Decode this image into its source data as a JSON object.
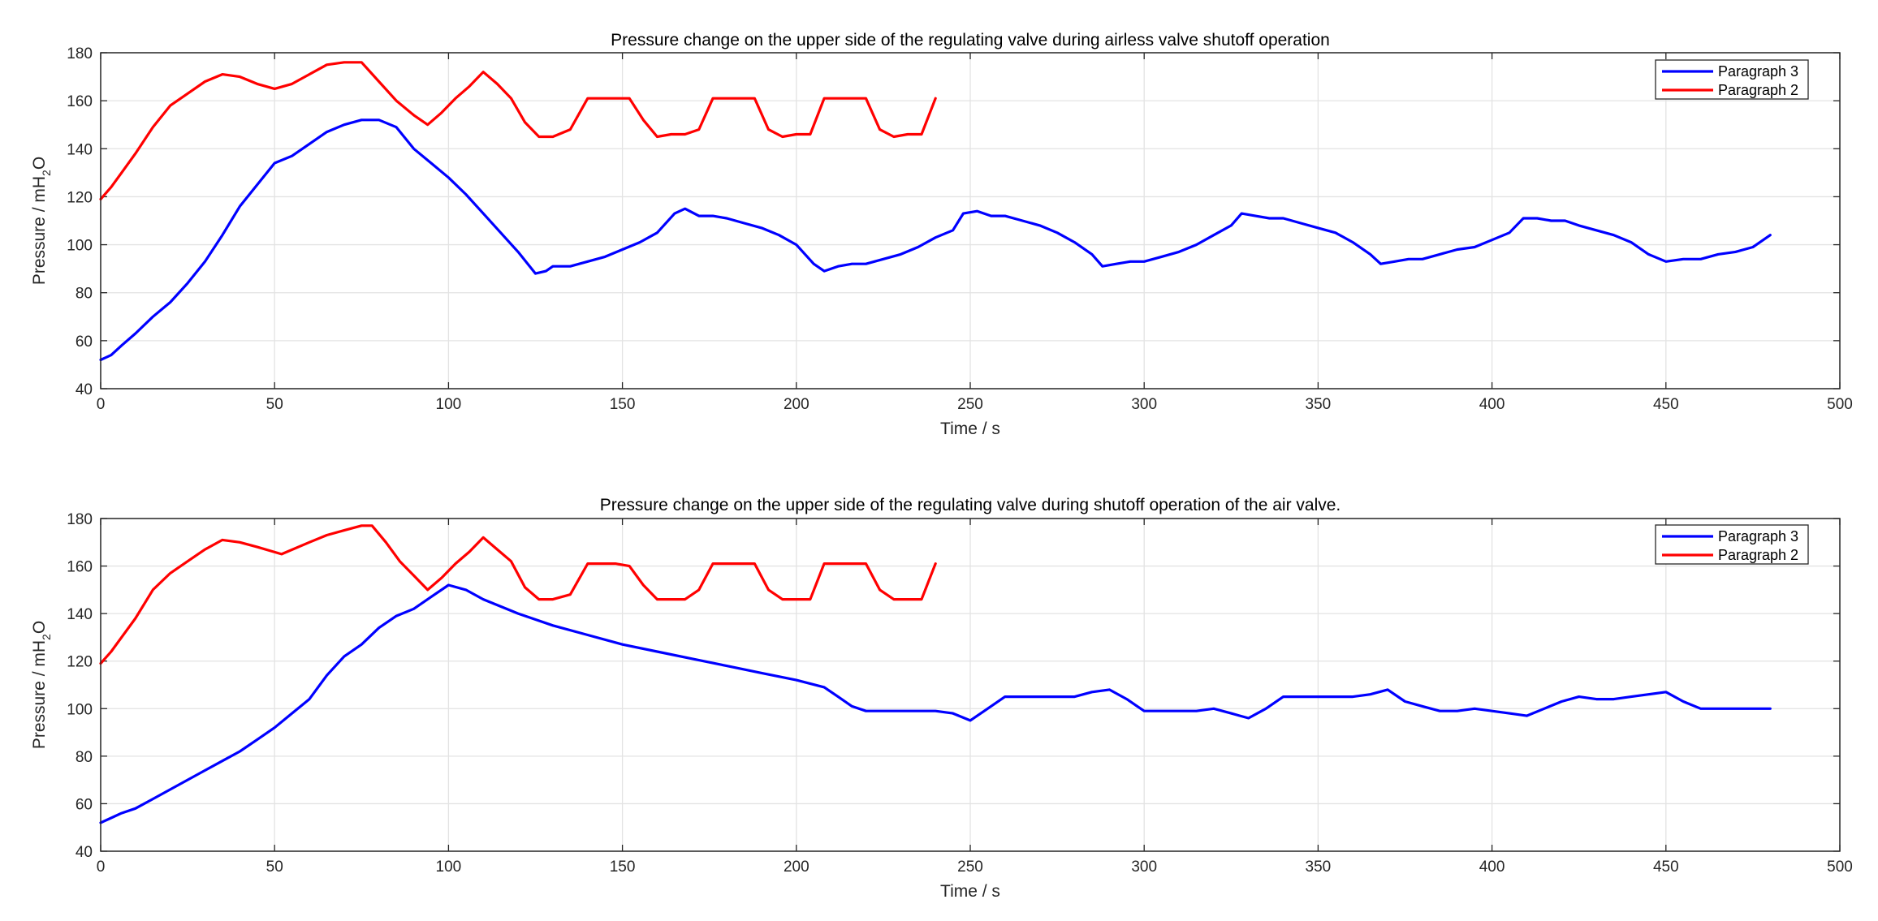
{
  "chart_data": [
    {
      "type": "line",
      "title": "Pressure change on the upper side of the regulating valve during airless valve shutoff operation",
      "xlabel": "Time / s",
      "ylabel_main": "Pressure  / mH",
      "ylabel_sub": "2",
      "ylabel_end": "O",
      "xlim": [
        0,
        500
      ],
      "ylim": [
        40,
        180
      ],
      "xticks": [
        0,
        50,
        100,
        150,
        200,
        250,
        300,
        350,
        400,
        450,
        500
      ],
      "yticks": [
        40,
        60,
        80,
        100,
        120,
        140,
        160,
        180
      ],
      "grid": true,
      "legend_position": "top-right",
      "series": [
        {
          "name": "Paragraph 3",
          "color": "#0000ff",
          "x": [
            0,
            3,
            6,
            10,
            15,
            20,
            25,
            30,
            35,
            40,
            45,
            50,
            55,
            60,
            65,
            70,
            75,
            80,
            85,
            90,
            95,
            100,
            105,
            110,
            115,
            120,
            125,
            128,
            130,
            135,
            140,
            145,
            150,
            155,
            160,
            165,
            168,
            172,
            176,
            180,
            185,
            190,
            195,
            200,
            205,
            208,
            212,
            216,
            220,
            225,
            230,
            235,
            240,
            245,
            248,
            252,
            256,
            260,
            265,
            270,
            275,
            280,
            285,
            288,
            292,
            296,
            300,
            305,
            310,
            315,
            320,
            325,
            328,
            332,
            336,
            340,
            345,
            350,
            355,
            360,
            365,
            368,
            372,
            376,
            380,
            385,
            390,
            395,
            400,
            405,
            409,
            413,
            417,
            421,
            425,
            430,
            435,
            440,
            445,
            450,
            455,
            460,
            465,
            470,
            475,
            480
          ],
          "values": [
            52,
            54,
            58,
            63,
            70,
            76,
            84,
            93,
            104,
            116,
            125,
            134,
            137,
            142,
            147,
            150,
            152,
            152,
            149,
            140,
            134,
            128,
            121,
            113,
            105,
            97,
            88,
            89,
            91,
            91,
            93,
            95,
            98,
            101,
            105,
            113,
            115,
            112,
            112,
            111,
            109,
            107,
            104,
            100,
            92,
            89,
            91,
            92,
            92,
            94,
            96,
            99,
            103,
            106,
            113,
            114,
            112,
            112,
            110,
            108,
            105,
            101,
            96,
            91,
            92,
            93,
            93,
            95,
            97,
            100,
            104,
            108,
            113,
            112,
            111,
            111,
            109,
            107,
            105,
            101,
            96,
            92,
            93,
            94,
            94,
            96,
            98,
            99,
            102,
            105,
            111,
            111,
            110,
            110,
            108,
            106,
            104,
            101,
            96,
            93,
            94,
            94,
            96,
            97,
            99,
            104
          ]
        },
        {
          "name": "Paragraph 2",
          "color": "#ff0000",
          "x": [
            0,
            3,
            6,
            10,
            15,
            20,
            25,
            30,
            35,
            40,
            45,
            50,
            55,
            60,
            65,
            70,
            75,
            80,
            85,
            90,
            94,
            98,
            102,
            106,
            110,
            114,
            118,
            122,
            126,
            130,
            135,
            140,
            144,
            148,
            152,
            156,
            160,
            164,
            168,
            172,
            176,
            180,
            184,
            188,
            192,
            196,
            200,
            204,
            208,
            212,
            216,
            220,
            224,
            228,
            232,
            236,
            240
          ],
          "values": [
            119,
            124,
            130,
            138,
            149,
            158,
            163,
            168,
            171,
            170,
            167,
            165,
            167,
            171,
            175,
            176,
            176,
            168,
            160,
            154,
            150,
            155,
            161,
            166,
            172,
            167,
            161,
            151,
            145,
            145,
            148,
            161,
            161,
            161,
            161,
            152,
            145,
            146,
            146,
            148,
            161,
            161,
            161,
            161,
            148,
            145,
            146,
            146,
            161,
            161,
            161,
            161,
            148,
            145,
            146,
            146,
            161
          ]
        }
      ]
    },
    {
      "type": "line",
      "title": "Pressure change on the upper side of the regulating valve during shutoff operation of the air valve.",
      "xlabel": "Time / s",
      "ylabel_main": "Pressure  / mH",
      "ylabel_sub": "2",
      "ylabel_end": "O",
      "xlim": [
        0,
        500
      ],
      "ylim": [
        40,
        180
      ],
      "xticks": [
        0,
        50,
        100,
        150,
        200,
        250,
        300,
        350,
        400,
        450,
        500
      ],
      "yticks": [
        40,
        60,
        80,
        100,
        120,
        140,
        160,
        180
      ],
      "grid": true,
      "legend_position": "top-right",
      "series": [
        {
          "name": "Paragraph 3",
          "color": "#0000ff",
          "x": [
            0,
            3,
            6,
            10,
            15,
            20,
            25,
            30,
            35,
            40,
            45,
            50,
            55,
            60,
            65,
            70,
            75,
            80,
            85,
            90,
            95,
            100,
            105,
            110,
            120,
            130,
            140,
            150,
            160,
            170,
            180,
            190,
            200,
            208,
            212,
            216,
            220,
            230,
            240,
            245,
            250,
            255,
            260,
            270,
            280,
            285,
            290,
            295,
            300,
            310,
            315,
            320,
            325,
            330,
            335,
            340,
            350,
            360,
            365,
            370,
            375,
            380,
            385,
            390,
            395,
            400,
            405,
            410,
            415,
            420,
            425,
            430,
            435,
            440,
            445,
            450,
            455,
            460,
            470,
            480
          ],
          "values": [
            52,
            54,
            56,
            58,
            62,
            66,
            70,
            74,
            78,
            82,
            87,
            92,
            98,
            104,
            114,
            122,
            127,
            134,
            139,
            142,
            147,
            152,
            150,
            146,
            140,
            135,
            131,
            127,
            124,
            121,
            118,
            115,
            112,
            109,
            105,
            101,
            99,
            99,
            99,
            98,
            95,
            100,
            105,
            105,
            105,
            107,
            108,
            104,
            99,
            99,
            99,
            100,
            98,
            96,
            100,
            105,
            105,
            105,
            106,
            108,
            103,
            101,
            99,
            99,
            100,
            99,
            98,
            97,
            100,
            103,
            105,
            104,
            104,
            105,
            106,
            107,
            103,
            100,
            100,
            100
          ]
        },
        {
          "name": "Paragraph 2",
          "color": "#ff0000",
          "x": [
            0,
            3,
            6,
            10,
            15,
            20,
            25,
            30,
            35,
            40,
            45,
            52,
            60,
            65,
            70,
            75,
            78,
            82,
            86,
            90,
            94,
            98,
            102,
            106,
            110,
            114,
            118,
            122,
            126,
            130,
            135,
            140,
            144,
            148,
            152,
            156,
            160,
            164,
            168,
            172,
            176,
            180,
            184,
            188,
            192,
            196,
            200,
            204,
            208,
            212,
            216,
            220,
            224,
            228,
            232,
            236,
            240
          ],
          "values": [
            119,
            124,
            130,
            138,
            150,
            157,
            162,
            167,
            171,
            170,
            168,
            165,
            170,
            173,
            175,
            177,
            177,
            170,
            162,
            156,
            150,
            155,
            161,
            166,
            172,
            167,
            162,
            151,
            146,
            146,
            148,
            161,
            161,
            161,
            160,
            152,
            146,
            146,
            146,
            150,
            161,
            161,
            161,
            161,
            150,
            146,
            146,
            146,
            161,
            161,
            161,
            161,
            150,
            146,
            146,
            146,
            161
          ]
        }
      ]
    }
  ]
}
